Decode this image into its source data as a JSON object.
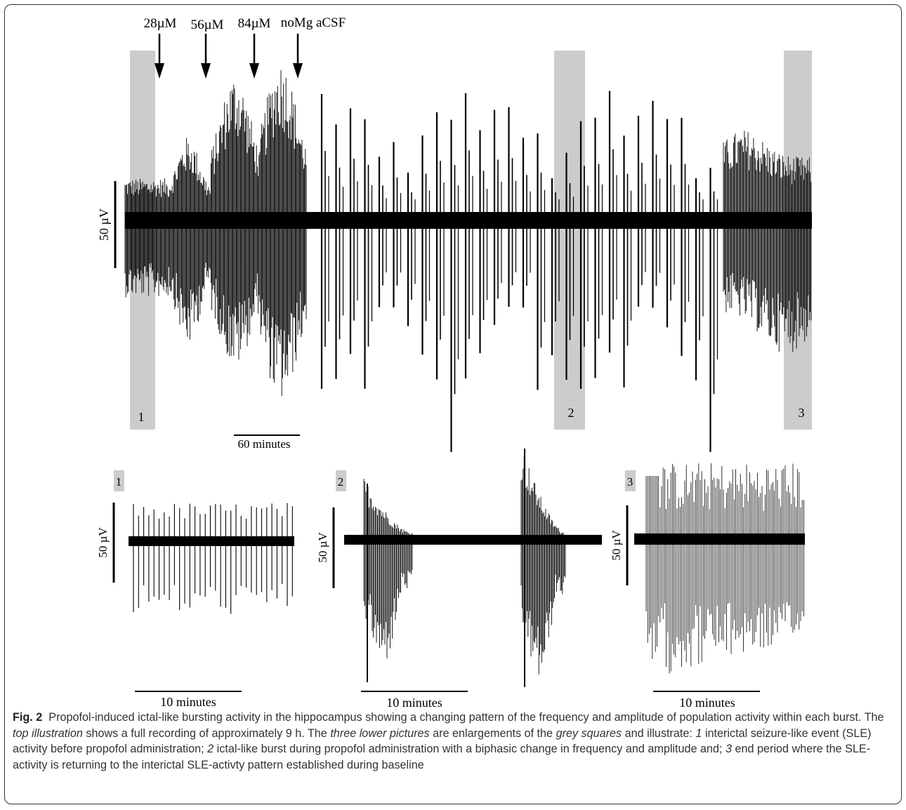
{
  "figure": {
    "top_panel": {
      "arrow_labels": [
        "28µM",
        "56µM",
        "84µM",
        "noMg aCSF"
      ],
      "y_scale_label": "50 µV",
      "time_scale_label": "60 minutes",
      "highlight_labels": [
        "1",
        "2",
        "3"
      ]
    },
    "lower_panels": [
      {
        "label": "1",
        "y_scale_label": "50 µV",
        "time_scale_label": "10 minutes"
      },
      {
        "label": "2",
        "y_scale_label": "50 µV",
        "time_scale_label": "10 minutes"
      },
      {
        "label": "3",
        "y_scale_label": "50 µV",
        "time_scale_label": "10 minutes"
      }
    ],
    "colors": {
      "trace": "#000000",
      "highlight": "#cccccc",
      "frame": "#333333"
    }
  },
  "caption": {
    "label": "Fig. 2",
    "s1": "Propofol-induced ictal-like bursting activity in the hippocampus showing a changing pattern of the frequency and amplitude of population activity within each burst. The",
    "i1": "top illustration",
    "s2": "shows a full recording of approximately 9 h. The",
    "i2": "three lower pictures",
    "s3": "are enlargements of the",
    "i3": "grey squares",
    "s4": "and illustrate:",
    "n1": "1",
    "s5": "interictal seizure-like event (SLE) activity before propofol administration;",
    "n2": "2",
    "s6": "ictal-like burst during propofol administration with a biphasic change in frequency and amplitude and;",
    "n3": "3",
    "s7": "end period where the SLE-activity is returning to the interictal SLE-activty pattern established during baseline"
  }
}
